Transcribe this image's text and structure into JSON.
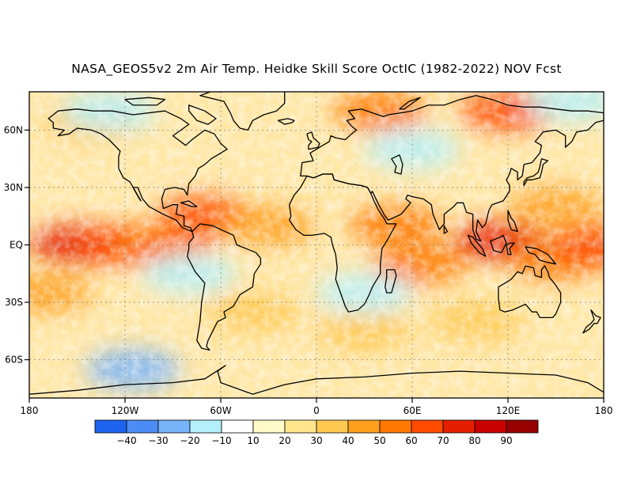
{
  "title": "NASA_GEOS5v2 2m Air Temp. Heidke Skill Score OctIC (1982-2022) NOV Fcst",
  "chart_data": {
    "type": "heatmap",
    "map_projection": "equirectangular",
    "x_range": [
      -180,
      180
    ],
    "y_range": [
      -80,
      80
    ],
    "x_ticks": [
      {
        "value": -180,
        "label": "180"
      },
      {
        "value": -120,
        "label": "120W"
      },
      {
        "value": -60,
        "label": "60W"
      },
      {
        "value": 0,
        "label": "0"
      },
      {
        "value": 60,
        "label": "60E"
      },
      {
        "value": 120,
        "label": "120E"
      },
      {
        "value": 180,
        "label": "180"
      }
    ],
    "y_ticks": [
      {
        "value": 60,
        "label": "60N"
      },
      {
        "value": 30,
        "label": "30N"
      },
      {
        "value": 0,
        "label": "EQ"
      },
      {
        "value": -30,
        "label": "30S"
      },
      {
        "value": -60,
        "label": "60S"
      }
    ],
    "grid": true,
    "colorbar": {
      "placement": "bottom",
      "colors": [
        "#1e64f0",
        "#4b8cf5",
        "#78b4fa",
        "#b4f0fa",
        "#ffffff",
        "#fffac8",
        "#ffe68c",
        "#ffc850",
        "#ffa01e",
        "#ff7800",
        "#ff4b00",
        "#e61e00",
        "#c80000",
        "#960000"
      ],
      "labels": [
        "-40",
        "-30",
        "-20",
        "-10",
        "10",
        "20",
        "30",
        "40",
        "50",
        "60",
        "70",
        "80",
        "90"
      ]
    },
    "hotspots": [
      {
        "lon": -150,
        "lat": 0,
        "value": 70
      },
      {
        "lon": -120,
        "lat": 0,
        "value": 65
      },
      {
        "lon": -95,
        "lat": 0,
        "value": 55
      },
      {
        "lon": -70,
        "lat": 15,
        "value": 60
      },
      {
        "lon": -30,
        "lat": 10,
        "value": 40
      },
      {
        "lon": 115,
        "lat": 2,
        "value": 70
      },
      {
        "lon": 150,
        "lat": -8,
        "value": 55
      },
      {
        "lon": 175,
        "lat": 0,
        "value": 60
      },
      {
        "lon": 65,
        "lat": -10,
        "value": 50
      },
      {
        "lon": 50,
        "lat": 10,
        "value": 50
      },
      {
        "lon": 120,
        "lat": 70,
        "value": 60
      },
      {
        "lon": 40,
        "lat": 70,
        "value": 55
      },
      {
        "lon": -140,
        "lat": 65,
        "value": 30
      },
      {
        "lon": -170,
        "lat": -25,
        "value": 40
      },
      {
        "lon": 150,
        "lat": 20,
        "value": 45
      },
      {
        "lon": -40,
        "lat": -35,
        "value": 35
      },
      {
        "lon": 30,
        "lat": -45,
        "value": 30
      },
      {
        "lon": 100,
        "lat": -40,
        "value": 30
      }
    ],
    "lowspots": [
      {
        "lon": -115,
        "lat": -65,
        "value": -20
      },
      {
        "lon": -130,
        "lat": 70,
        "value": -10
      },
      {
        "lon": 60,
        "lat": 50,
        "value": -10
      },
      {
        "lon": 30,
        "lat": -25,
        "value": -10
      },
      {
        "lon": 160,
        "lat": 75,
        "value": -10
      },
      {
        "lon": -80,
        "lat": -15,
        "value": -10
      }
    ]
  }
}
